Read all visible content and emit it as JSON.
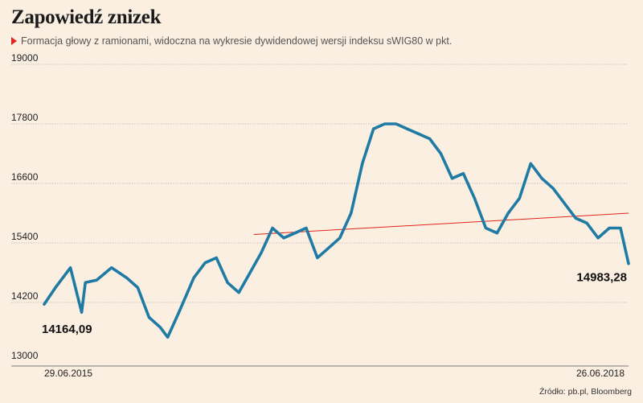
{
  "title": "Zapowiedź znizek",
  "subtitle": "Formacja głowy z ramionami, widoczna na wykresie dywidendowej wersji indeksu sWIG80 w pkt.",
  "source": "Źródło: pb.pl, Bloomberg",
  "colors": {
    "line": "#1f7ba3",
    "trend": "#e0241b",
    "background": "#fbefe2"
  },
  "chart_data": {
    "type": "line",
    "title": "Zapowiedź znizek",
    "subtitle": "Formacja głowy z ramionami, widoczna na wykresie dywidendowej wersji indeksu sWIG80 w pkt.",
    "x_labels": [
      "29.06.2015",
      "26.06.2018"
    ],
    "x_range": [
      "2015-06-29",
      "2018-06-26"
    ],
    "ylim": [
      13000,
      19000
    ],
    "yticks": [
      13000,
      14200,
      15400,
      16600,
      17800,
      19000
    ],
    "grid": true,
    "start_label": "14164,09",
    "end_label": "14983,28",
    "start_value": 14164.09,
    "end_value": 14983.28,
    "series": [
      {
        "x": [
          "2015-06-29",
          "2015-07-20",
          "2015-08-17",
          "2015-09-07",
          "2015-09-14",
          "2015-10-05",
          "2015-11-02",
          "2015-11-30",
          "2015-12-21",
          "2016-01-11",
          "2016-02-01",
          "2016-02-15",
          "2016-03-07",
          "2016-04-04",
          "2016-04-25",
          "2016-05-16",
          "2016-06-06",
          "2016-06-27",
          "2016-07-18",
          "2016-08-08",
          "2016-08-29",
          "2016-09-19",
          "2016-10-10",
          "2016-10-31",
          "2016-11-21",
          "2016-12-12",
          "2017-01-02",
          "2017-01-23",
          "2017-02-13",
          "2017-03-06",
          "2017-03-27",
          "2017-04-17",
          "2017-05-08",
          "2017-05-29",
          "2017-06-19",
          "2017-07-10",
          "2017-07-31",
          "2017-08-21",
          "2017-09-11",
          "2017-10-02",
          "2017-10-23",
          "2017-11-13",
          "2017-12-04",
          "2017-12-25",
          "2018-01-15",
          "2018-02-05",
          "2018-02-26",
          "2018-03-19",
          "2018-04-09",
          "2018-04-30",
          "2018-05-21",
          "2018-06-11",
          "2018-06-26"
        ],
        "values": [
          14164.09,
          14500,
          14900,
          14000,
          14600,
          14650,
          14900,
          14700,
          14500,
          13900,
          13700,
          13500,
          14000,
          14700,
          15000,
          15100,
          14600,
          14400,
          14800,
          15200,
          15700,
          15500,
          15600,
          15700,
          15100,
          15300,
          15500,
          16000,
          17000,
          17700,
          17800,
          17800,
          17700,
          17600,
          17500,
          17200,
          16700,
          16800,
          16300,
          15700,
          15600,
          16000,
          16300,
          17000,
          16700,
          16500,
          16200,
          15900,
          15800,
          15500,
          15700,
          15700,
          14983.28
        ]
      }
    ],
    "trendline": {
      "label": "",
      "from": {
        "x": "2016-07-25",
        "y": 15570
      },
      "to": {
        "x": "2018-06-26",
        "y": 16000
      }
    }
  }
}
